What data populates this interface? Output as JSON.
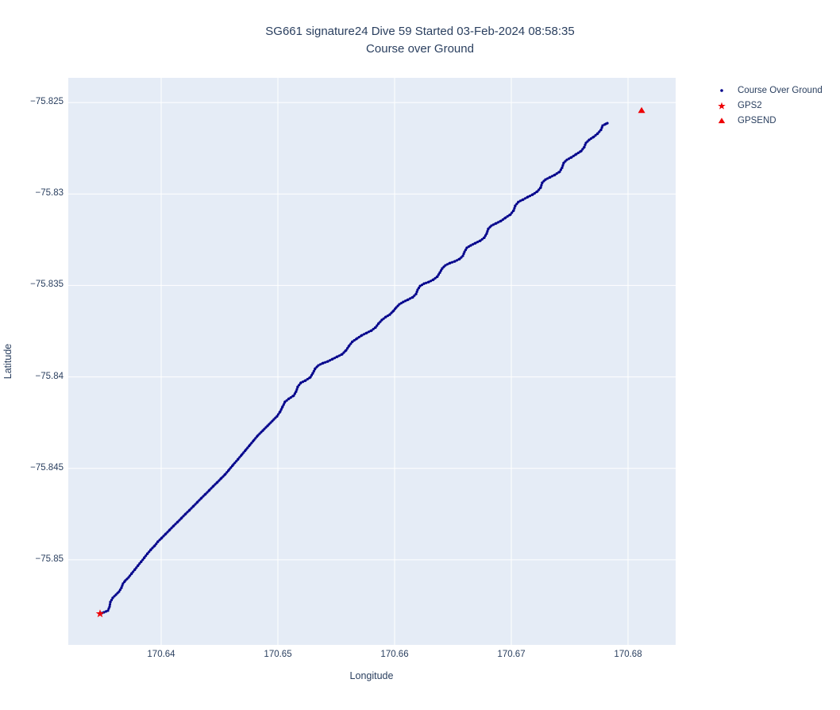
{
  "colors": {
    "plot_bg": "#e5ecf6",
    "grid": "#ffffff",
    "text": "#2a3f5f",
    "course_line": "#00008b",
    "marker_red": "#ee0005"
  },
  "chart_data": {
    "type": "scatter",
    "title": "SG661 signature24 Dive 59 Started 03-Feb-2024 08:58:35",
    "subtitle": "Course over Ground",
    "xlabel": "Longitude",
    "ylabel": "Latitude",
    "xlim": [
      170.63204,
      170.68408
    ],
    "ylim": [
      -75.85465,
      -75.82365
    ],
    "x_ticks": [
      170.64,
      170.65,
      170.66,
      170.67,
      170.68
    ],
    "x_tick_labels": [
      "170.64",
      "170.65",
      "170.66",
      "170.67",
      "170.68"
    ],
    "y_ticks": [
      -75.825,
      -75.83,
      -75.835,
      -75.84,
      -75.845,
      -75.85
    ],
    "y_tick_labels": [
      "−75.825",
      "−75.83",
      "−75.835",
      "−75.84",
      "−75.845",
      "−75.85"
    ],
    "grid": true,
    "legend_position": "right-outside",
    "series": [
      {
        "name": "Course Over Ground",
        "marker": "dot",
        "color": "#00008b",
        "points": [
          [
            170.63476,
            -75.85295
          ],
          [
            170.6351,
            -75.85287
          ],
          [
            170.63544,
            -75.85278
          ],
          [
            170.63558,
            -75.85256
          ],
          [
            170.63565,
            -75.8523
          ],
          [
            170.63585,
            -75.85208
          ],
          [
            170.63612,
            -75.85191
          ],
          [
            170.63639,
            -75.85174
          ],
          [
            170.6366,
            -75.85152
          ],
          [
            170.63673,
            -75.8513
          ],
          [
            170.63694,
            -75.85113
          ],
          [
            170.63721,
            -75.85096
          ],
          [
            170.63748,
            -75.85074
          ],
          [
            170.63776,
            -75.85052
          ],
          [
            170.63803,
            -75.8503
          ],
          [
            170.6383,
            -75.85009
          ],
          [
            170.63857,
            -75.84987
          ],
          [
            170.63884,
            -75.84965
          ],
          [
            170.63912,
            -75.84944
          ],
          [
            170.63946,
            -75.84922
          ],
          [
            170.63973,
            -75.849
          ],
          [
            170.64007,
            -75.84879
          ],
          [
            170.64041,
            -75.84857
          ],
          [
            170.64075,
            -75.84835
          ],
          [
            170.64109,
            -75.84813
          ],
          [
            170.64143,
            -75.84792
          ],
          [
            170.64177,
            -75.8477
          ],
          [
            170.64211,
            -75.84748
          ],
          [
            170.64245,
            -75.84727
          ],
          [
            170.64279,
            -75.84705
          ],
          [
            170.64313,
            -75.84683
          ],
          [
            170.64347,
            -75.84661
          ],
          [
            170.64381,
            -75.8464
          ],
          [
            170.64415,
            -75.84618
          ],
          [
            170.64449,
            -75.84596
          ],
          [
            170.64483,
            -75.84575
          ],
          [
            170.64517,
            -75.84553
          ],
          [
            170.64551,
            -75.84531
          ],
          [
            170.64585,
            -75.84505
          ],
          [
            170.64619,
            -75.84479
          ],
          [
            170.6466,
            -75.84449
          ],
          [
            170.64694,
            -75.84423
          ],
          [
            170.64728,
            -75.84397
          ],
          [
            170.64762,
            -75.84371
          ],
          [
            170.64796,
            -75.84345
          ],
          [
            170.6483,
            -75.84319
          ],
          [
            170.64871,
            -75.84293
          ],
          [
            170.64912,
            -75.84267
          ],
          [
            170.64952,
            -75.84241
          ],
          [
            170.64993,
            -75.84215
          ],
          [
            170.6502,
            -75.84189
          ],
          [
            170.65041,
            -75.84162
          ],
          [
            170.65061,
            -75.84136
          ],
          [
            170.65095,
            -75.84119
          ],
          [
            170.65136,
            -75.84102
          ],
          [
            170.65156,
            -75.8408
          ],
          [
            170.6517,
            -75.84054
          ],
          [
            170.65197,
            -75.84032
          ],
          [
            170.65238,
            -75.84019
          ],
          [
            170.65279,
            -75.84002
          ],
          [
            170.65299,
            -75.8398
          ],
          [
            170.6532,
            -75.83954
          ],
          [
            170.65347,
            -75.83937
          ],
          [
            170.65388,
            -75.83924
          ],
          [
            170.65429,
            -75.83915
          ],
          [
            170.65469,
            -75.83902
          ],
          [
            170.6551,
            -75.83889
          ],
          [
            170.65551,
            -75.83876
          ],
          [
            170.65585,
            -75.83854
          ],
          [
            170.65612,
            -75.83828
          ],
          [
            170.65639,
            -75.83807
          ],
          [
            170.6568,
            -75.83789
          ],
          [
            170.65721,
            -75.83772
          ],
          [
            170.65762,
            -75.83759
          ],
          [
            170.65803,
            -75.83746
          ],
          [
            170.65837,
            -75.83729
          ],
          [
            170.65864,
            -75.83707
          ],
          [
            170.65891,
            -75.83689
          ],
          [
            170.65925,
            -75.83672
          ],
          [
            170.65959,
            -75.83659
          ],
          [
            170.65993,
            -75.83637
          ],
          [
            170.66014,
            -75.8362
          ],
          [
            170.66041,
            -75.83603
          ],
          [
            170.66075,
            -75.8359
          ],
          [
            170.66116,
            -75.83577
          ],
          [
            170.66156,
            -75.83564
          ],
          [
            170.66184,
            -75.83546
          ],
          [
            170.66197,
            -75.83524
          ],
          [
            170.66218,
            -75.83503
          ],
          [
            170.66252,
            -75.8349
          ],
          [
            170.66293,
            -75.83481
          ],
          [
            170.66333,
            -75.83468
          ],
          [
            170.66367,
            -75.83451
          ],
          [
            170.66388,
            -75.83429
          ],
          [
            170.66408,
            -75.83407
          ],
          [
            170.66435,
            -75.8339
          ],
          [
            170.66476,
            -75.83377
          ],
          [
            170.66517,
            -75.83368
          ],
          [
            170.66558,
            -75.83355
          ],
          [
            170.66585,
            -75.83338
          ],
          [
            170.66599,
            -75.83316
          ],
          [
            170.66619,
            -75.83294
          ],
          [
            170.66653,
            -75.83281
          ],
          [
            170.66694,
            -75.83268
          ],
          [
            170.66735,
            -75.83255
          ],
          [
            170.66769,
            -75.83238
          ],
          [
            170.66789,
            -75.83216
          ],
          [
            170.66803,
            -75.8319
          ],
          [
            170.6683,
            -75.83173
          ],
          [
            170.66871,
            -75.8316
          ],
          [
            170.66912,
            -75.83147
          ],
          [
            170.66952,
            -75.83129
          ],
          [
            170.66993,
            -75.83112
          ],
          [
            170.6702,
            -75.8309
          ],
          [
            170.67034,
            -75.83064
          ],
          [
            170.67061,
            -75.83043
          ],
          [
            170.67102,
            -75.8303
          ],
          [
            170.67143,
            -75.83016
          ],
          [
            170.67184,
            -75.83003
          ],
          [
            170.67224,
            -75.82986
          ],
          [
            170.67252,
            -75.82964
          ],
          [
            170.67265,
            -75.82938
          ],
          [
            170.67293,
            -75.82921
          ],
          [
            170.67333,
            -75.82908
          ],
          [
            170.67374,
            -75.82895
          ],
          [
            170.67415,
            -75.82878
          ],
          [
            170.67435,
            -75.82856
          ],
          [
            170.67449,
            -75.8283
          ],
          [
            170.67476,
            -75.82813
          ],
          [
            170.67517,
            -75.82799
          ],
          [
            170.67558,
            -75.82782
          ],
          [
            170.67599,
            -75.82765
          ],
          [
            170.67626,
            -75.82743
          ],
          [
            170.67639,
            -75.82721
          ],
          [
            170.67667,
            -75.82704
          ],
          [
            170.67707,
            -75.82687
          ],
          [
            170.67741,
            -75.82669
          ],
          [
            170.67769,
            -75.82648
          ],
          [
            170.67782,
            -75.82626
          ],
          [
            170.6781,
            -75.82617
          ],
          [
            170.67823,
            -75.82613
          ]
        ]
      },
      {
        "name": "GPS2",
        "marker": "star",
        "color": "#ee0005",
        "points": [
          [
            170.63476,
            -75.85295
          ]
        ]
      },
      {
        "name": "GPSEND",
        "marker": "triangle-up",
        "color": "#ee0005",
        "points": [
          [
            170.68116,
            -75.82543
          ]
        ]
      }
    ]
  }
}
